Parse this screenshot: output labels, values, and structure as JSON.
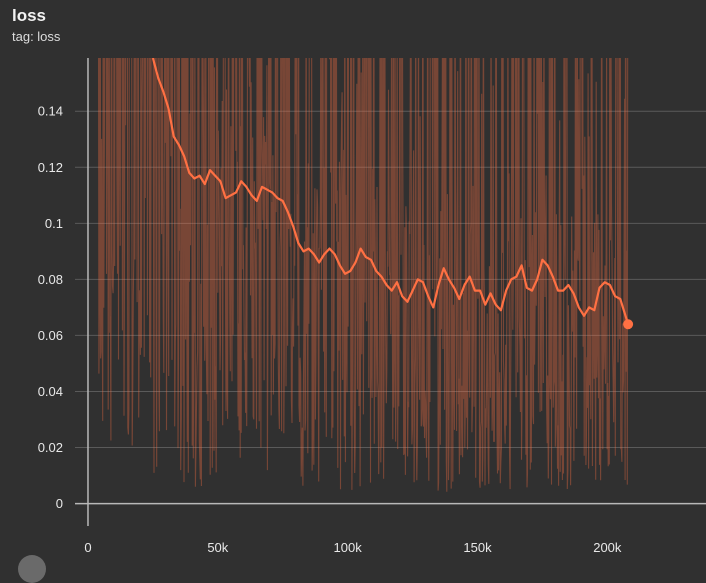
{
  "card": {
    "title": "loss",
    "tag": "tag: loss"
  },
  "chart_data": {
    "type": "line",
    "title": "loss",
    "xlabel": "",
    "ylabel": "",
    "xlim": [
      -5000,
      238000
    ],
    "ylim": [
      -0.008,
      0.159
    ],
    "x_ticks": [
      0,
      50000,
      100000,
      150000,
      200000
    ],
    "x_tick_labels": [
      "0",
      "50k",
      "100k",
      "150k",
      "200k"
    ],
    "y_ticks": [
      0,
      0.02,
      0.04,
      0.06,
      0.08,
      0.1,
      0.12,
      0.14
    ],
    "y_tick_labels": [
      "0",
      "0.02",
      "0.04",
      "0.06",
      "0.08",
      "0.1",
      "0.12",
      "0.14"
    ],
    "grid": true,
    "colors": {
      "smoothed": "#ff7043",
      "raw": "#ff7043",
      "raw_opacity": 0.35
    },
    "series": [
      {
        "role": "smoothed",
        "x": [
          25000,
          27000,
          29000,
          31000,
          33000,
          35000,
          37000,
          39000,
          41000,
          43000,
          45000,
          47000,
          49000,
          51000,
          53000,
          55000,
          57000,
          59000,
          61000,
          63000,
          65000,
          67000,
          69000,
          71000,
          73000,
          75000,
          77000,
          79000,
          81000,
          83000,
          85000,
          87000,
          89000,
          91000,
          93000,
          95000,
          97000,
          99000,
          101000,
          103000,
          105000,
          107000,
          109000,
          111000,
          113000,
          115000,
          117000,
          119000,
          121000,
          123000,
          125000,
          127000,
          129000,
          131000,
          133000,
          135000,
          137000,
          139000,
          141000,
          143000,
          145000,
          147000,
          149000,
          151000,
          153000,
          155000,
          157000,
          159000,
          161000,
          163000,
          165000,
          167000,
          169000,
          171000,
          173000,
          175000,
          177000,
          179000,
          181000,
          183000,
          185000,
          187000,
          189000,
          191000,
          193000,
          195000,
          197000,
          199000,
          201000,
          203000,
          205000,
          207000,
          208000
        ],
        "y": [
          0.159,
          0.152,
          0.147,
          0.141,
          0.131,
          0.128,
          0.124,
          0.118,
          0.116,
          0.117,
          0.114,
          0.119,
          0.117,
          0.115,
          0.109,
          0.11,
          0.111,
          0.115,
          0.113,
          0.11,
          0.108,
          0.113,
          0.112,
          0.111,
          0.109,
          0.108,
          0.104,
          0.099,
          0.093,
          0.09,
          0.091,
          0.089,
          0.086,
          0.089,
          0.091,
          0.089,
          0.085,
          0.082,
          0.083,
          0.086,
          0.091,
          0.088,
          0.087,
          0.083,
          0.081,
          0.078,
          0.076,
          0.079,
          0.074,
          0.072,
          0.076,
          0.08,
          0.079,
          0.074,
          0.07,
          0.078,
          0.084,
          0.08,
          0.077,
          0.073,
          0.078,
          0.081,
          0.076,
          0.076,
          0.071,
          0.075,
          0.071,
          0.069,
          0.076,
          0.08,
          0.081,
          0.085,
          0.077,
          0.076,
          0.08,
          0.087,
          0.085,
          0.081,
          0.076,
          0.076,
          0.078,
          0.075,
          0.07,
          0.067,
          0.07,
          0.069,
          0.077,
          0.079,
          0.078,
          0.074,
          0.073,
          0.067,
          0.064
        ]
      }
    ]
  }
}
